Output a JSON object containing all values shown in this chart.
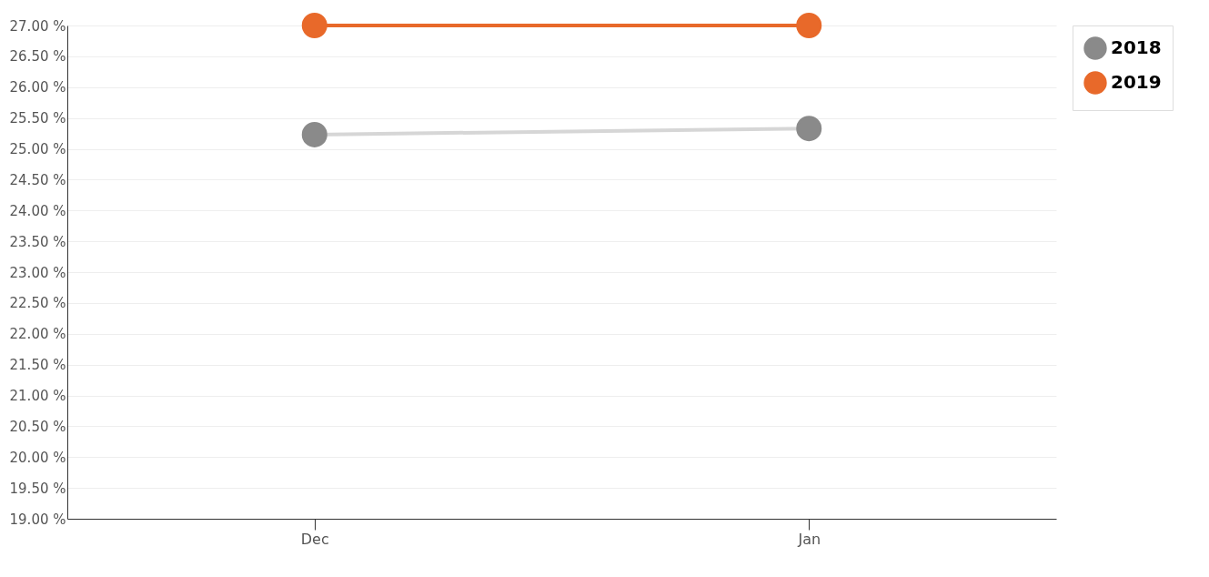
{
  "chart_data": {
    "type": "line",
    "categories": [
      "Dec",
      "Jan"
    ],
    "series": [
      {
        "name": "2018",
        "color": "#8a8a8a",
        "values": [
          25.23,
          25.33
        ]
      },
      {
        "name": "2019",
        "color": "#e8692a",
        "values": [
          27.0,
          27.0
        ]
      }
    ],
    "ylim": [
      19,
      27
    ],
    "yticks": [
      {
        "value": 19,
        "label": "19.00 %"
      },
      {
        "value": 19.5,
        "label": "19.50 %"
      },
      {
        "value": 20,
        "label": "20.00 %"
      },
      {
        "value": 20.5,
        "label": "20.50 %"
      },
      {
        "value": 21,
        "label": "21.00 %"
      },
      {
        "value": 21.5,
        "label": "21.50 %"
      },
      {
        "value": 22,
        "label": "22.00 %"
      },
      {
        "value": 22.5,
        "label": "22.50 %"
      },
      {
        "value": 23,
        "label": "23.00 %"
      },
      {
        "value": 23.5,
        "label": "23.50 %"
      },
      {
        "value": 24,
        "label": "24.00 %"
      },
      {
        "value": 24.5,
        "label": "24.50 %"
      },
      {
        "value": 25,
        "label": "25.00 %"
      },
      {
        "value": 25.5,
        "label": "25.50 %"
      },
      {
        "value": 26,
        "label": "26.00 %"
      },
      {
        "value": 26.5,
        "label": "26.50 %"
      },
      {
        "value": 27,
        "label": "27.00 %"
      }
    ],
    "grid": "y",
    "legend": "top right",
    "marker": "circle",
    "line_style": "solid"
  }
}
